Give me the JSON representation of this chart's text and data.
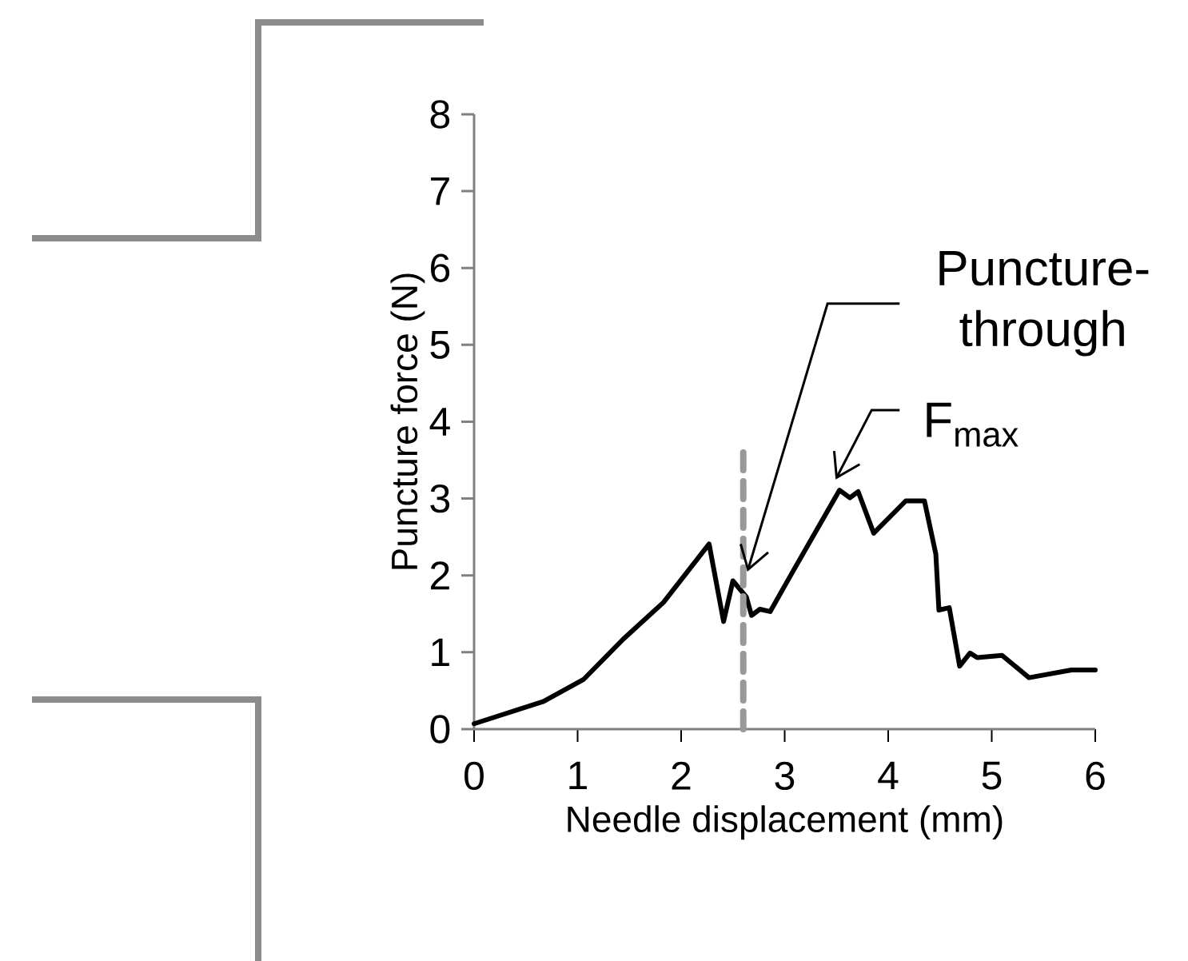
{
  "chart_data": {
    "type": "line",
    "xlabel": "Needle displacement (mm)",
    "ylabel": "Puncture force (N)",
    "xlim": [
      0,
      6
    ],
    "ylim": [
      0,
      8
    ],
    "xticks": [
      0,
      1,
      2,
      3,
      4,
      5,
      6
    ],
    "yticks": [
      0,
      1,
      2,
      3,
      4,
      5,
      6,
      7,
      8
    ],
    "grid": false,
    "series": [
      {
        "color": "#000000",
        "line_style": "solid",
        "x": [
          0,
          0.67,
          1.06,
          1.44,
          1.83,
          2.27,
          2.41,
          2.5,
          2.63,
          2.68,
          2.76,
          2.86,
          3.07,
          3.53,
          3.63,
          3.71,
          3.86,
          4.17,
          4.35,
          4.46,
          4.49,
          4.59,
          4.69,
          4.79,
          4.86,
          5.1,
          5.36,
          5.77,
          6.0
        ],
        "values": [
          0.07,
          0.36,
          0.65,
          1.17,
          1.65,
          2.41,
          1.4,
          1.93,
          1.72,
          1.48,
          1.56,
          1.53,
          2.03,
          3.11,
          3.01,
          3.09,
          2.55,
          2.97,
          2.97,
          2.28,
          1.55,
          1.58,
          0.82,
          0.99,
          0.93,
          0.96,
          0.67,
          0.77,
          0.77
        ]
      },
      {
        "color": "#999999",
        "line_style": "dashed",
        "x": [
          2.6,
          2.6
        ],
        "values": [
          0,
          3.6
        ]
      }
    ],
    "annotations": [
      "Puncture-through",
      "F$_{max}$"
    ]
  }
}
